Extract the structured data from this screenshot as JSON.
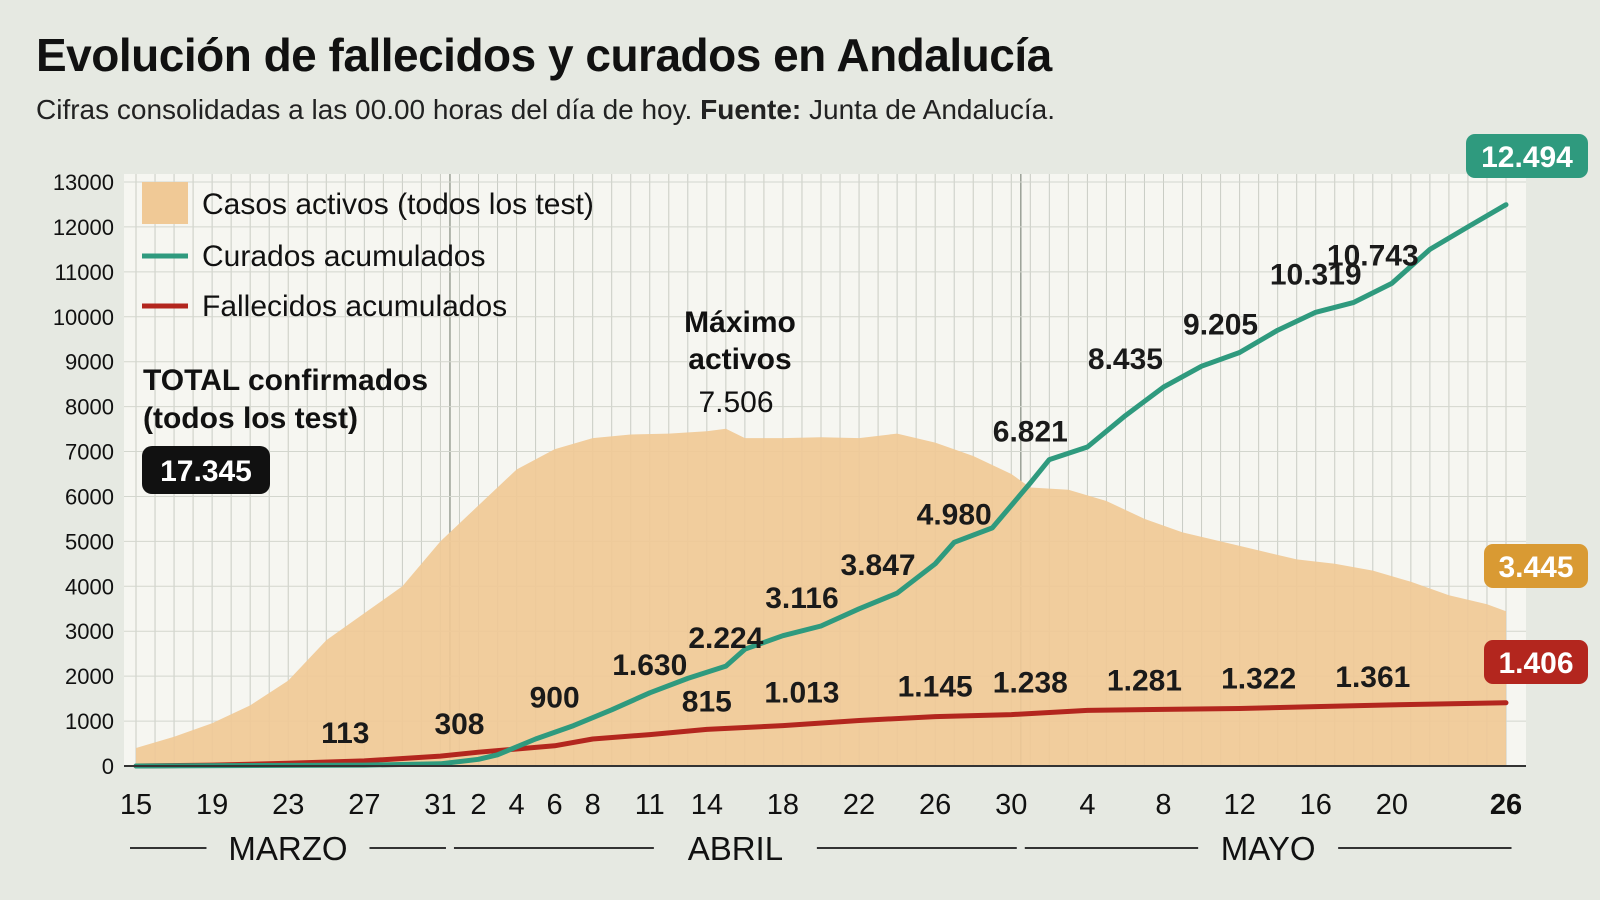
{
  "header": {
    "title": "Evolución de fallecidos y curados en Andalucía",
    "subtitle_text": "Cifras consolidadas a las 00.00 horas del día de hoy.",
    "source_label": "Fuente:",
    "source_value": "Junta de Andalucía."
  },
  "colors": {
    "background": "#e6e9e2",
    "active_fill": "#f0c996",
    "recovered_line": "#2f9a7e",
    "deaths_line": "#b3261e",
    "total_badge": "#111111",
    "active_badge": "#d99a33"
  },
  "total_box": {
    "label_line1": "TOTAL confirmados",
    "label_line2": "(todos los test)",
    "value": "17.345"
  },
  "peak_annotation": {
    "line1": "Máximo",
    "line2": "activos",
    "value": "7.506"
  },
  "end_badges": {
    "recovered": "12.494",
    "active": "3.445",
    "deaths": "1.406"
  },
  "chart_data": {
    "type": "area",
    "title": "Evolución de fallecidos y curados en Andalucía",
    "ylim": [
      0,
      13000
    ],
    "yticks": [
      0,
      1000,
      2000,
      3000,
      4000,
      5000,
      6000,
      7000,
      8000,
      9000,
      10000,
      11000,
      12000,
      13000
    ],
    "x_start": "2020-03-15",
    "x_end": "2020-05-26",
    "x_tick_dates": [
      "2020-03-15",
      "2020-03-19",
      "2020-03-23",
      "2020-03-27",
      "2020-03-31",
      "2020-04-02",
      "2020-04-04",
      "2020-04-06",
      "2020-04-08",
      "2020-04-11",
      "2020-04-14",
      "2020-04-18",
      "2020-04-22",
      "2020-04-26",
      "2020-04-30",
      "2020-05-04",
      "2020-05-08",
      "2020-05-12",
      "2020-05-16",
      "2020-05-20",
      "2020-05-26"
    ],
    "x_tick_labels": [
      "15",
      "19",
      "23",
      "27",
      "31",
      "2",
      "4",
      "6",
      "8",
      "11",
      "14",
      "18",
      "22",
      "26",
      "30",
      "4",
      "8",
      "12",
      "16",
      "20",
      "26"
    ],
    "months": [
      {
        "label": "MARZO",
        "start": "2020-03-15",
        "end": "2020-03-31"
      },
      {
        "label": "ABRIL",
        "start": "2020-04-01",
        "end": "2020-04-30"
      },
      {
        "label": "MAYO",
        "start": "2020-05-01",
        "end": "2020-05-26"
      }
    ],
    "grid": true,
    "legend_position": "top-left",
    "series": [
      {
        "name": "Casos activos (todos los test)",
        "kind": "area",
        "points": [
          [
            "2020-03-15",
            400
          ],
          [
            "2020-03-17",
            650
          ],
          [
            "2020-03-19",
            950
          ],
          [
            "2020-03-21",
            1350
          ],
          [
            "2020-03-23",
            1900
          ],
          [
            "2020-03-25",
            2800
          ],
          [
            "2020-03-27",
            3400
          ],
          [
            "2020-03-29",
            4000
          ],
          [
            "2020-03-31",
            5000
          ],
          [
            "2020-04-02",
            5800
          ],
          [
            "2020-04-04",
            6600
          ],
          [
            "2020-04-06",
            7050
          ],
          [
            "2020-04-08",
            7300
          ],
          [
            "2020-04-10",
            7380
          ],
          [
            "2020-04-12",
            7400
          ],
          [
            "2020-04-14",
            7450
          ],
          [
            "2020-04-15",
            7506
          ],
          [
            "2020-04-16",
            7300
          ],
          [
            "2020-04-18",
            7300
          ],
          [
            "2020-04-20",
            7320
          ],
          [
            "2020-04-22",
            7300
          ],
          [
            "2020-04-24",
            7400
          ],
          [
            "2020-04-26",
            7200
          ],
          [
            "2020-04-28",
            6900
          ],
          [
            "2020-04-30",
            6500
          ],
          [
            "2020-05-01",
            6200
          ],
          [
            "2020-05-03",
            6150
          ],
          [
            "2020-05-05",
            5900
          ],
          [
            "2020-05-07",
            5500
          ],
          [
            "2020-05-09",
            5200
          ],
          [
            "2020-05-11",
            5000
          ],
          [
            "2020-05-13",
            4800
          ],
          [
            "2020-05-15",
            4600
          ],
          [
            "2020-05-17",
            4500
          ],
          [
            "2020-05-19",
            4350
          ],
          [
            "2020-05-21",
            4100
          ],
          [
            "2020-05-23",
            3800
          ],
          [
            "2020-05-25",
            3600
          ],
          [
            "2020-05-26",
            3445
          ]
        ]
      },
      {
        "name": "Curados acumulados",
        "kind": "line",
        "points": [
          [
            "2020-03-15",
            0
          ],
          [
            "2020-03-27",
            20
          ],
          [
            "2020-03-31",
            50
          ],
          [
            "2020-04-02",
            150
          ],
          [
            "2020-04-03",
            250
          ],
          [
            "2020-04-05",
            600
          ],
          [
            "2020-04-07",
            900
          ],
          [
            "2020-04-09",
            1250
          ],
          [
            "2020-04-11",
            1630
          ],
          [
            "2020-04-13",
            1950
          ],
          [
            "2020-04-15",
            2224
          ],
          [
            "2020-04-16",
            2600
          ],
          [
            "2020-04-18",
            2900
          ],
          [
            "2020-04-20",
            3116
          ],
          [
            "2020-04-22",
            3500
          ],
          [
            "2020-04-24",
            3847
          ],
          [
            "2020-04-26",
            4500
          ],
          [
            "2020-04-27",
            4980
          ],
          [
            "2020-04-29",
            5300
          ],
          [
            "2020-05-01",
            6300
          ],
          [
            "2020-05-02",
            6821
          ],
          [
            "2020-05-04",
            7100
          ],
          [
            "2020-05-06",
            7800
          ],
          [
            "2020-05-08",
            8435
          ],
          [
            "2020-05-10",
            8900
          ],
          [
            "2020-05-12",
            9205
          ],
          [
            "2020-05-14",
            9700
          ],
          [
            "2020-05-16",
            10100
          ],
          [
            "2020-05-18",
            10319
          ],
          [
            "2020-05-20",
            10743
          ],
          [
            "2020-05-22",
            11500
          ],
          [
            "2020-05-24",
            12000
          ],
          [
            "2020-05-26",
            12494
          ]
        ]
      },
      {
        "name": "Fallecidos acumulados",
        "kind": "line",
        "points": [
          [
            "2020-03-15",
            0
          ],
          [
            "2020-03-19",
            20
          ],
          [
            "2020-03-23",
            60
          ],
          [
            "2020-03-27",
            113
          ],
          [
            "2020-03-31",
            220
          ],
          [
            "2020-04-02",
            308
          ],
          [
            "2020-04-06",
            450
          ],
          [
            "2020-04-08",
            600
          ],
          [
            "2020-04-11",
            700
          ],
          [
            "2020-04-14",
            815
          ],
          [
            "2020-04-18",
            900
          ],
          [
            "2020-04-22",
            1013
          ],
          [
            "2020-04-26",
            1100
          ],
          [
            "2020-04-30",
            1145
          ],
          [
            "2020-05-04",
            1238
          ],
          [
            "2020-05-08",
            1260
          ],
          [
            "2020-05-12",
            1281
          ],
          [
            "2020-05-16",
            1322
          ],
          [
            "2020-05-20",
            1361
          ],
          [
            "2020-05-26",
            1406
          ]
        ]
      }
    ],
    "recovered_labels": [
      [
        "2020-04-11",
        1630,
        "1.630"
      ],
      [
        "2020-04-15",
        2224,
        "2.224"
      ],
      [
        "2020-04-19",
        3116,
        "3.116"
      ],
      [
        "2020-04-23",
        3847,
        "3.847"
      ],
      [
        "2020-04-27",
        4980,
        "4.980"
      ],
      [
        "2020-05-01",
        6821,
        "6.821"
      ],
      [
        "2020-05-06",
        8435,
        "8.435"
      ],
      [
        "2020-05-11",
        9205,
        "9.205"
      ],
      [
        "2020-05-16",
        10319,
        "10.319"
      ],
      [
        "2020-05-19",
        10743,
        "10.743"
      ]
    ],
    "deaths_labels": [
      [
        "2020-03-26",
        113,
        "113"
      ],
      [
        "2020-04-01",
        308,
        "308"
      ],
      [
        "2020-04-06",
        900,
        "900"
      ],
      [
        "2020-04-14",
        815,
        "815"
      ],
      [
        "2020-04-19",
        1013,
        "1.013"
      ],
      [
        "2020-04-26",
        1145,
        "1.145"
      ],
      [
        "2020-05-01",
        1238,
        "1.238"
      ],
      [
        "2020-05-07",
        1281,
        "1.281"
      ],
      [
        "2020-05-13",
        1322,
        "1.322"
      ],
      [
        "2020-05-19",
        1361,
        "1.361"
      ]
    ]
  }
}
